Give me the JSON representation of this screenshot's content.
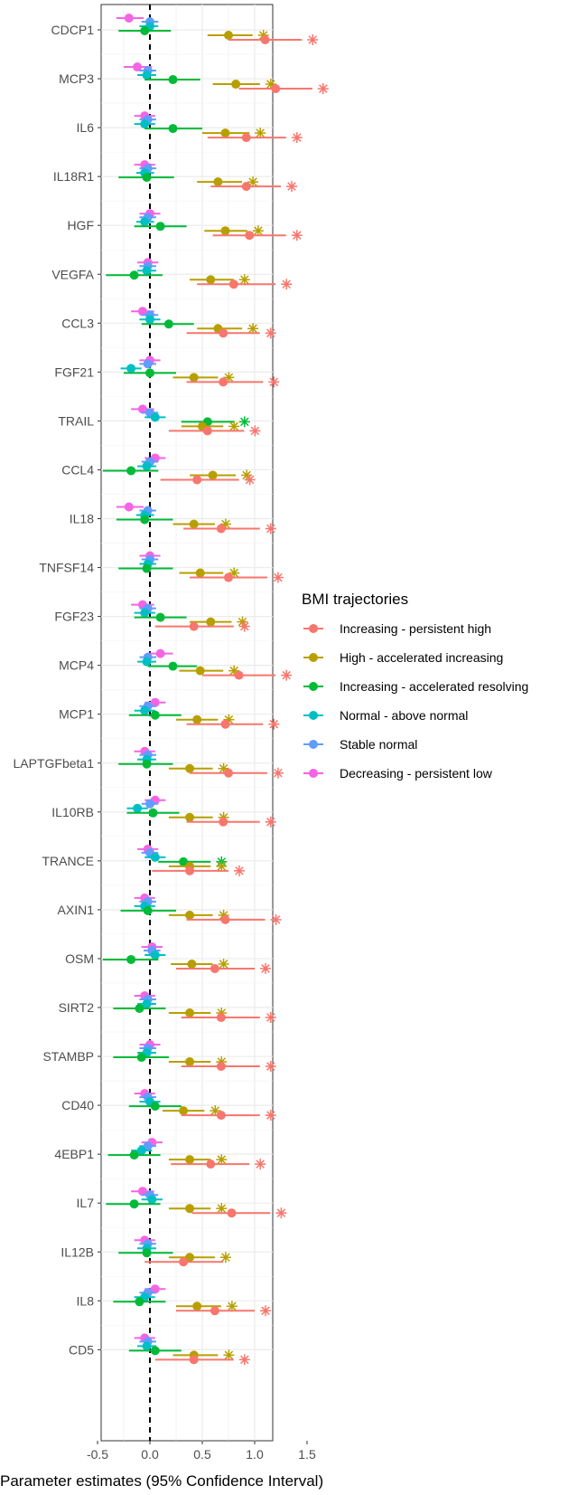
{
  "chart_data": {
    "type": "scatter",
    "subtype": "forest-plot",
    "xlabel": "Parameter estimates (95% Confidence Interval)",
    "xlim": [
      -0.6,
      1.8
    ],
    "xticks": [
      "-0.5",
      "0.0",
      "0.5",
      "1.0",
      "1.5"
    ],
    "xtick_values": [
      -0.5,
      0.0,
      0.5,
      1.0,
      1.5
    ],
    "reference_line": 0,
    "grid": true,
    "legend": {
      "title": "BMI trajectories",
      "placement": "right",
      "entries": [
        {
          "name": "Increasing - persistent high",
          "color": "#F8766D"
        },
        {
          "name": "High - accelerated increasing",
          "color": "#B79F00"
        },
        {
          "name": "Increasing - accelerated resolving",
          "color": "#00BA38"
        },
        {
          "name": "Normal - above normal",
          "color": "#00BFC4"
        },
        {
          "name": "Stable normal",
          "color": "#619CFF"
        },
        {
          "name": "Decreasing - persistent low",
          "color": "#F564E3"
        }
      ]
    },
    "proteins": [
      {
        "name": "CDCP1",
        "rows": [
          [
            1.1,
            0.75,
            1.45,
            true
          ],
          [
            0.75,
            0.55,
            0.98,
            true
          ],
          [
            -0.05,
            -0.3,
            0.2,
            false
          ],
          [
            0,
            -0.1,
            0.08,
            false
          ],
          [
            0,
            -0.08,
            0.08,
            false
          ],
          [
            -0.2,
            -0.32,
            -0.06,
            false
          ]
        ]
      },
      {
        "name": "MCP3",
        "rows": [
          [
            1.2,
            0.85,
            1.55,
            true
          ],
          [
            0.82,
            0.6,
            1.05,
            true
          ],
          [
            0.22,
            -0.05,
            0.48,
            false
          ],
          [
            -0.03,
            -0.12,
            0.06,
            false
          ],
          [
            -0.02,
            -0.1,
            0.06,
            false
          ],
          [
            -0.12,
            -0.25,
            0.02,
            false
          ]
        ]
      },
      {
        "name": "IL6",
        "rows": [
          [
            0.92,
            0.55,
            1.3,
            true
          ],
          [
            0.72,
            0.5,
            0.95,
            true
          ],
          [
            0.22,
            -0.05,
            0.5,
            false
          ],
          [
            -0.05,
            -0.15,
            0.05,
            false
          ],
          [
            -0.02,
            -0.1,
            0.06,
            false
          ],
          [
            -0.05,
            -0.15,
            0.05,
            false
          ]
        ]
      },
      {
        "name": "IL18R1",
        "rows": [
          [
            0.92,
            0.58,
            1.25,
            true
          ],
          [
            0.65,
            0.45,
            0.88,
            true
          ],
          [
            -0.03,
            -0.3,
            0.23,
            false
          ],
          [
            -0.05,
            -0.13,
            0.04,
            false
          ],
          [
            -0.02,
            -0.1,
            0.06,
            false
          ],
          [
            -0.05,
            -0.15,
            0.05,
            false
          ]
        ]
      },
      {
        "name": "HGF",
        "rows": [
          [
            0.95,
            0.6,
            1.3,
            true
          ],
          [
            0.72,
            0.52,
            0.93,
            true
          ],
          [
            0.1,
            -0.15,
            0.35,
            false
          ],
          [
            -0.05,
            -0.13,
            0.04,
            false
          ],
          [
            -0.02,
            -0.1,
            0.06,
            false
          ],
          [
            0,
            -0.1,
            0.1,
            false
          ]
        ]
      },
      {
        "name": "VEGFA",
        "rows": [
          [
            0.8,
            0.45,
            1.2,
            true
          ],
          [
            0.58,
            0.38,
            0.8,
            true
          ],
          [
            -0.15,
            -0.42,
            0.12,
            false
          ],
          [
            -0.03,
            -0.12,
            0.06,
            false
          ],
          [
            -0.02,
            -0.1,
            0.06,
            false
          ],
          [
            -0.02,
            -0.12,
            0.08,
            false
          ]
        ]
      },
      {
        "name": "CCL3",
        "rows": [
          [
            0.7,
            0.35,
            1.05,
            true
          ],
          [
            0.65,
            0.45,
            0.88,
            true
          ],
          [
            0.18,
            -0.08,
            0.42,
            false
          ],
          [
            0,
            -0.1,
            0.1,
            false
          ],
          [
            0,
            -0.08,
            0.08,
            false
          ],
          [
            -0.07,
            -0.18,
            0.04,
            false
          ]
        ]
      },
      {
        "name": "FGF21",
        "rows": [
          [
            0.7,
            0.35,
            1.08,
            true
          ],
          [
            0.42,
            0.22,
            0.65,
            true
          ],
          [
            0,
            -0.25,
            0.25,
            false
          ],
          [
            -0.18,
            -0.28,
            -0.08,
            false
          ],
          [
            -0.02,
            -0.1,
            0.06,
            false
          ],
          [
            0,
            -0.1,
            0.1,
            false
          ]
        ]
      },
      {
        "name": "TRAIL",
        "rows": [
          [
            0.55,
            0.18,
            0.9,
            true
          ],
          [
            0.5,
            0.3,
            0.7,
            true
          ],
          [
            0.55,
            0.3,
            0.8,
            true
          ],
          [
            0.05,
            -0.05,
            0.15,
            false
          ],
          [
            0,
            -0.08,
            0.08,
            false
          ],
          [
            -0.07,
            -0.18,
            0.04,
            false
          ]
        ]
      },
      {
        "name": "CCL4",
        "rows": [
          [
            0.45,
            0.1,
            0.85,
            true
          ],
          [
            0.6,
            0.38,
            0.82,
            true
          ],
          [
            -0.18,
            -0.45,
            0.08,
            false
          ],
          [
            -0.03,
            -0.12,
            0.06,
            false
          ],
          [
            0,
            -0.08,
            0.08,
            false
          ],
          [
            0.05,
            -0.05,
            0.15,
            false
          ]
        ]
      },
      {
        "name": "IL18",
        "rows": [
          [
            0.68,
            0.32,
            1.05,
            true
          ],
          [
            0.42,
            0.22,
            0.62,
            true
          ],
          [
            -0.05,
            -0.32,
            0.22,
            false
          ],
          [
            -0.05,
            -0.13,
            0.04,
            false
          ],
          [
            -0.02,
            -0.1,
            0.06,
            false
          ],
          [
            -0.2,
            -0.32,
            -0.06,
            false
          ]
        ]
      },
      {
        "name": "TNFSF14",
        "rows": [
          [
            0.75,
            0.38,
            1.12,
            true
          ],
          [
            0.48,
            0.28,
            0.7,
            true
          ],
          [
            -0.03,
            -0.3,
            0.22,
            false
          ],
          [
            -0.02,
            -0.1,
            0.06,
            false
          ],
          [
            0,
            -0.08,
            0.08,
            false
          ],
          [
            0,
            -0.1,
            0.1,
            false
          ]
        ]
      },
      {
        "name": "FGF23",
        "rows": [
          [
            0.42,
            0.05,
            0.8,
            true
          ],
          [
            0.58,
            0.38,
            0.78,
            true
          ],
          [
            0.1,
            -0.15,
            0.35,
            false
          ],
          [
            -0.05,
            -0.15,
            0.05,
            false
          ],
          [
            -0.02,
            -0.1,
            0.06,
            false
          ],
          [
            -0.07,
            -0.18,
            0.04,
            false
          ]
        ]
      },
      {
        "name": "MCP4",
        "rows": [
          [
            0.85,
            0.5,
            1.2,
            true
          ],
          [
            0.48,
            0.28,
            0.7,
            true
          ],
          [
            0.22,
            -0.02,
            0.45,
            false
          ],
          [
            -0.03,
            -0.12,
            0.06,
            false
          ],
          [
            -0.02,
            -0.1,
            0.06,
            false
          ],
          [
            0.1,
            -0.02,
            0.22,
            false
          ]
        ]
      },
      {
        "name": "MCP1",
        "rows": [
          [
            0.72,
            0.35,
            1.08,
            true
          ],
          [
            0.45,
            0.25,
            0.65,
            true
          ],
          [
            0.05,
            -0.2,
            0.3,
            false
          ],
          [
            -0.05,
            -0.15,
            0.05,
            false
          ],
          [
            -0.02,
            -0.1,
            0.06,
            false
          ],
          [
            0.05,
            -0.05,
            0.15,
            false
          ]
        ]
      },
      {
        "name": "LAPTGFbeta1",
        "rows": [
          [
            0.75,
            0.38,
            1.12,
            true
          ],
          [
            0.38,
            0.18,
            0.6,
            true
          ],
          [
            -0.03,
            -0.3,
            0.22,
            false
          ],
          [
            -0.03,
            -0.12,
            0.06,
            false
          ],
          [
            -0.02,
            -0.1,
            0.06,
            false
          ],
          [
            -0.05,
            -0.15,
            0.05,
            false
          ]
        ]
      },
      {
        "name": "IL10RB",
        "rows": [
          [
            0.7,
            0.35,
            1.05,
            true
          ],
          [
            0.38,
            0.18,
            0.6,
            true
          ],
          [
            0.03,
            -0.22,
            0.28,
            false
          ],
          [
            -0.12,
            -0.22,
            -0.02,
            false
          ],
          [
            0,
            -0.08,
            0.08,
            false
          ],
          [
            0.05,
            -0.05,
            0.15,
            false
          ]
        ]
      },
      {
        "name": "TRANCE",
        "rows": [
          [
            0.38,
            0.02,
            0.75,
            true
          ],
          [
            0.38,
            0.18,
            0.58,
            true
          ],
          [
            0.32,
            0.08,
            0.58,
            true
          ],
          [
            0.05,
            -0.05,
            0.15,
            false
          ],
          [
            0,
            -0.08,
            0.08,
            false
          ],
          [
            -0.02,
            -0.12,
            0.08,
            false
          ]
        ]
      },
      {
        "name": "AXIN1",
        "rows": [
          [
            0.72,
            0.35,
            1.1,
            true
          ],
          [
            0.38,
            0.18,
            0.6,
            true
          ],
          [
            -0.02,
            -0.28,
            0.25,
            false
          ],
          [
            -0.05,
            -0.15,
            0.05,
            false
          ],
          [
            -0.02,
            -0.1,
            0.06,
            false
          ],
          [
            -0.05,
            -0.15,
            0.05,
            false
          ]
        ]
      },
      {
        "name": "OSM",
        "rows": [
          [
            0.62,
            0.25,
            1.0,
            true
          ],
          [
            0.4,
            0.2,
            0.6,
            true
          ],
          [
            -0.18,
            -0.45,
            0.08,
            false
          ],
          [
            0.05,
            -0.05,
            0.15,
            false
          ],
          [
            0.02,
            -0.06,
            0.1,
            false
          ],
          [
            0.02,
            -0.08,
            0.12,
            false
          ]
        ]
      },
      {
        "name": "SIRT2",
        "rows": [
          [
            0.68,
            0.3,
            1.05,
            true
          ],
          [
            0.38,
            0.18,
            0.58,
            true
          ],
          [
            -0.1,
            -0.35,
            0.15,
            false
          ],
          [
            -0.03,
            -0.12,
            0.06,
            false
          ],
          [
            -0.02,
            -0.1,
            0.06,
            false
          ],
          [
            -0.05,
            -0.15,
            0.05,
            false
          ]
        ]
      },
      {
        "name": "STAMBP",
        "rows": [
          [
            0.68,
            0.3,
            1.05,
            true
          ],
          [
            0.38,
            0.18,
            0.58,
            true
          ],
          [
            -0.08,
            -0.35,
            0.18,
            false
          ],
          [
            -0.03,
            -0.12,
            0.06,
            false
          ],
          [
            -0.02,
            -0.1,
            0.06,
            false
          ],
          [
            0,
            -0.1,
            0.1,
            false
          ]
        ]
      },
      {
        "name": "CD40",
        "rows": [
          [
            0.68,
            0.3,
            1.05,
            true
          ],
          [
            0.32,
            0.12,
            0.52,
            true
          ],
          [
            0.05,
            -0.2,
            0.3,
            false
          ],
          [
            0,
            -0.1,
            0.1,
            false
          ],
          [
            -0.02,
            -0.1,
            0.06,
            false
          ],
          [
            -0.05,
            -0.15,
            0.05,
            false
          ]
        ]
      },
      {
        "name": "4EBP1",
        "rows": [
          [
            0.58,
            0.2,
            0.95,
            true
          ],
          [
            0.38,
            0.18,
            0.58,
            true
          ],
          [
            -0.15,
            -0.4,
            0.1,
            false
          ],
          [
            -0.08,
            -0.18,
            0.02,
            false
          ],
          [
            -0.02,
            -0.1,
            0.06,
            false
          ],
          [
            0.02,
            -0.08,
            0.12,
            false
          ]
        ]
      },
      {
        "name": "IL7",
        "rows": [
          [
            0.78,
            0.4,
            1.15,
            true
          ],
          [
            0.38,
            0.18,
            0.58,
            true
          ],
          [
            -0.15,
            -0.42,
            0.1,
            false
          ],
          [
            0.02,
            -0.08,
            0.12,
            false
          ],
          [
            0,
            -0.08,
            0.08,
            false
          ],
          [
            -0.07,
            -0.18,
            0.04,
            false
          ]
        ]
      },
      {
        "name": "IL12B",
        "rows": [
          [
            0.32,
            -0.05,
            0.7,
            false
          ],
          [
            0.38,
            0.18,
            0.62,
            true
          ],
          [
            -0.03,
            -0.3,
            0.22,
            false
          ],
          [
            -0.03,
            -0.12,
            0.06,
            false
          ],
          [
            -0.02,
            -0.1,
            0.06,
            false
          ],
          [
            -0.05,
            -0.15,
            0.05,
            false
          ]
        ]
      },
      {
        "name": "IL8",
        "rows": [
          [
            0.62,
            0.25,
            1.0,
            true
          ],
          [
            0.45,
            0.25,
            0.68,
            true
          ],
          [
            -0.1,
            -0.35,
            0.15,
            false
          ],
          [
            -0.05,
            -0.15,
            0.05,
            false
          ],
          [
            -0.02,
            -0.1,
            0.06,
            false
          ],
          [
            0.05,
            -0.05,
            0.15,
            false
          ]
        ]
      },
      {
        "name": "CD5",
        "rows": [
          [
            0.42,
            0.05,
            0.8,
            true
          ],
          [
            0.42,
            0.22,
            0.65,
            true
          ],
          [
            0.05,
            -0.2,
            0.3,
            false
          ],
          [
            -0.03,
            -0.12,
            0.06,
            false
          ],
          [
            -0.02,
            -0.1,
            0.06,
            false
          ],
          [
            -0.05,
            -0.15,
            0.05,
            false
          ]
        ]
      }
    ]
  }
}
